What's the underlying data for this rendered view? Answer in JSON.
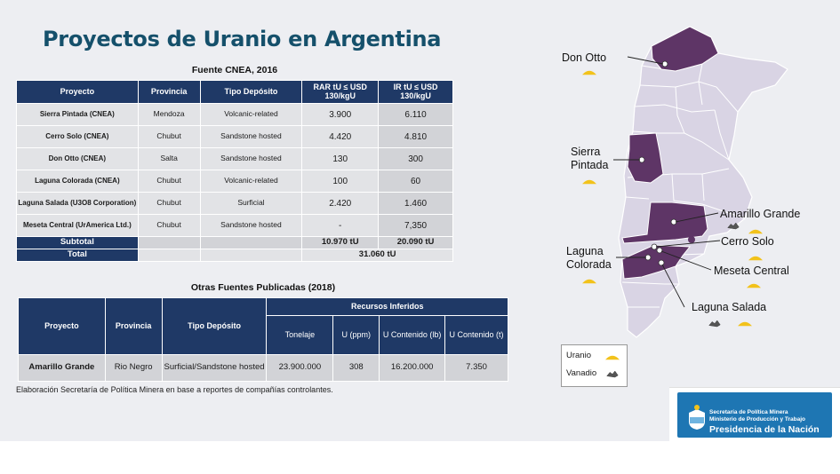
{
  "title": "Proyectos de Uranio en Argentina",
  "table1": {
    "caption": "Fuente CNEA, 2016",
    "headers": [
      "Proyecto",
      "Provincia",
      "Tipo Depósito",
      "RAR tU ≤ USD 130/kgU",
      "IR tU ≤ USD 130/kgU"
    ],
    "rows": [
      [
        "Sierra Pintada (CNEA)",
        "Mendoza",
        "Volcanic-related",
        "3.900",
        "6.110"
      ],
      [
        "Cerro Solo (CNEA)",
        "Chubut",
        "Sandstone hosted",
        "4.420",
        "4.810"
      ],
      [
        "Don Otto (CNEA)",
        "Salta",
        "Sandstone hosted",
        "130",
        "300"
      ],
      [
        "Laguna Colorada (CNEA)",
        "Chubut",
        "Volcanic-related",
        "100",
        "60"
      ],
      [
        "Laguna Salada (U3O8 Corporation)",
        "Chubut",
        "Surficial",
        "2.420",
        "1.460"
      ],
      [
        "Meseta Central (UrAmerica Ltd.)",
        "Chubut",
        "Sandstone hosted",
        "-",
        "7,350"
      ]
    ],
    "subtotal": {
      "label": "Subtotal",
      "rar": "10.970 tU",
      "ir": "20.090 tU"
    },
    "total": {
      "label": "Total",
      "value": "31.060 tU"
    }
  },
  "table2": {
    "caption": "Otras Fuentes Publicadas (2018)",
    "headers": {
      "proyecto": "Proyecto",
      "provincia": "Provincia",
      "tipo": "Tipo Depósito",
      "group": "Recursos Inferidos",
      "tonelaje": "Tonelaje",
      "u_ppm": "U (ppm)",
      "u_lb": "U Contenido (lb)",
      "u_t": "U Contenido (t)"
    },
    "row": {
      "proyecto": "Amarillo Grande",
      "provincia": "Rio Negro",
      "tipo": "Surficial/Sandstone hosted",
      "tonelaje": "23.900.000",
      "u_ppm": "308",
      "u_lb": "16.200.000",
      "u_t": "7.350"
    }
  },
  "footnote": "Elaboración Secretaría de Política Minera en base a reportes de compañías controlantes.",
  "map": {
    "labels": {
      "don_otto": "Don Otto",
      "sierra_pintada_1": "Sierra",
      "sierra_pintada_2": "Pintada",
      "amarillo_grande": "Amarillo Grande",
      "cerro_solo": "Cerro Solo",
      "laguna_colorada_1": "Laguna",
      "laguna_colorada_2": "Colorada",
      "meseta_central": "Meseta Central",
      "laguna_salada": "Laguna Salada"
    },
    "legend": {
      "uranio": "Uranio",
      "vanadio": "Vanadio"
    },
    "colors": {
      "province": "#d9d4e4",
      "highlight": "#5e3566",
      "uranio": "#f2c21b",
      "vanadio": "#666666"
    }
  },
  "logo": {
    "line1": "Secretaría de Política Minera",
    "line2": "Ministerio de Producción y Trabajo",
    "line3": "Presidencia de la Nación"
  }
}
